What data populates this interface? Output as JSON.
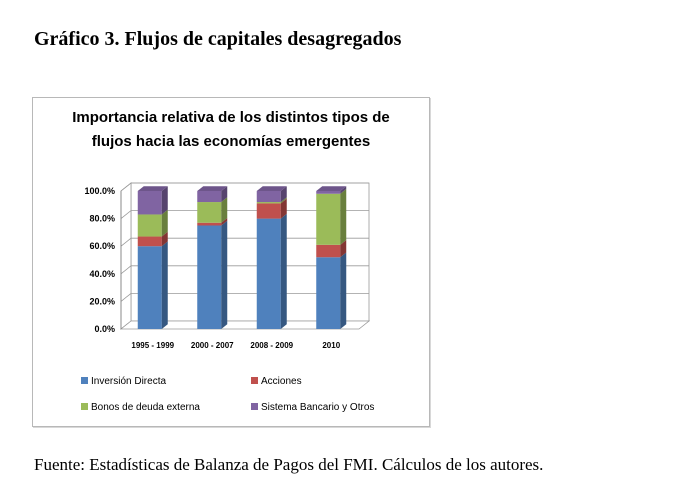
{
  "figure_heading": "Gráfico 3. Flujos de capitales desagregados",
  "source_note": "Fuente: Estadísticas de Balanza de Pagos del FMI. Cálculos de los autores.",
  "chart_data": {
    "type": "bar",
    "stacked": true,
    "three_d": true,
    "title_lines": [
      "Importancia relativa de los distintos tipos de",
      "flujos hacia las economías emergentes"
    ],
    "categories": [
      "1995 - 1999",
      "2000 - 2007",
      "2008 - 2009",
      "2010"
    ],
    "series": [
      {
        "name": "Inversión Directa",
        "color": "#4f81bd",
        "values": [
          60,
          75,
          80,
          52
        ]
      },
      {
        "name": "Acciones",
        "color": "#c0504d",
        "values": [
          7,
          2,
          11,
          9
        ]
      },
      {
        "name": "Bonos de deuda externa",
        "color": "#9bbb59",
        "values": [
          16,
          15,
          1,
          37
        ]
      },
      {
        "name": "Sistema Bancario y Otros",
        "color": "#8064a2",
        "values": [
          17,
          8,
          8,
          2
        ]
      }
    ],
    "ylim": [
      0,
      100
    ],
    "yticks": [
      "0.0%",
      "20.0%",
      "40.0%",
      "60.0%",
      "80.0%",
      "100.0%"
    ],
    "grid": true,
    "legend_position": "bottom"
  }
}
